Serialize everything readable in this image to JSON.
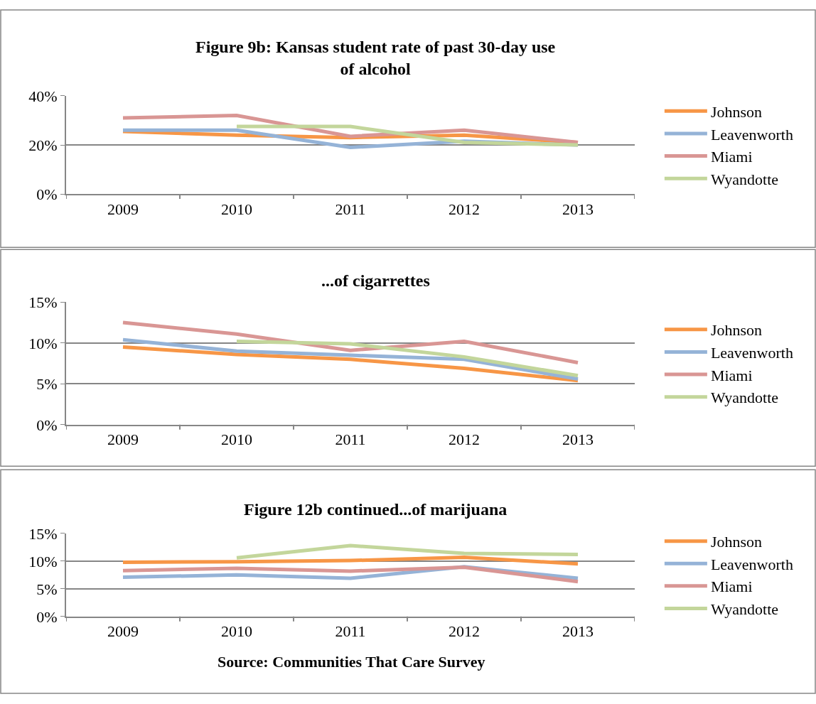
{
  "chart_data": [
    {
      "type": "line",
      "title": "Figure 9b: Kansas student rate of past 30-day use of alcohol",
      "categories": [
        "2009",
        "2010",
        "2011",
        "2012",
        "2013"
      ],
      "series": [
        {
          "name": "Johnson",
          "color": "#f79646",
          "values": [
            25.5,
            24,
            23,
            24,
            21
          ]
        },
        {
          "name": "Leavenworth",
          "color": "#95b3d7",
          "values": [
            26,
            26,
            19,
            21.5,
            20
          ]
        },
        {
          "name": "Miami",
          "color": "#d99694",
          "values": [
            31,
            32,
            23.5,
            26,
            21
          ]
        },
        {
          "name": "Wyandotte",
          "color": "#c3d69b",
          "values": [
            null,
            27.5,
            27.5,
            21,
            20
          ]
        }
      ],
      "ylim": [
        0,
        40
      ],
      "yticks": [
        {
          "value": 0,
          "label": "0%"
        },
        {
          "value": 20,
          "label": "20%"
        },
        {
          "value": 40,
          "label": "40%"
        }
      ],
      "grid": "y",
      "legend": "right",
      "marker": "none"
    },
    {
      "type": "line",
      "title": "...of cigarrettes",
      "categories": [
        "2009",
        "2010",
        "2011",
        "2012",
        "2013"
      ],
      "series": [
        {
          "name": "Johnson",
          "color": "#f79646",
          "values": [
            9.5,
            8.6,
            8.0,
            6.9,
            5.4
          ]
        },
        {
          "name": "Leavenworth",
          "color": "#95b3d7",
          "values": [
            10.4,
            9.0,
            8.5,
            8.0,
            5.6
          ]
        },
        {
          "name": "Miami",
          "color": "#d99694",
          "values": [
            12.5,
            11.1,
            9.1,
            10.2,
            7.6
          ]
        },
        {
          "name": "Wyandotte",
          "color": "#c3d69b",
          "values": [
            null,
            10.2,
            9.9,
            8.3,
            6.0
          ]
        }
      ],
      "ylim": [
        0,
        15
      ],
      "yticks": [
        {
          "value": 0,
          "label": "0%"
        },
        {
          "value": 5,
          "label": "5%"
        },
        {
          "value": 10,
          "label": "10%"
        },
        {
          "value": 15,
          "label": "15%"
        }
      ],
      "grid": "y",
      "legend": "right",
      "marker": "none"
    },
    {
      "type": "line",
      "title": "Figure 12b continued...of marijuana",
      "categories": [
        "2009",
        "2010",
        "2011",
        "2012",
        "2013"
      ],
      "series": [
        {
          "name": "Johnson",
          "color": "#f79646",
          "values": [
            9.8,
            9.9,
            10.1,
            10.7,
            9.5
          ]
        },
        {
          "name": "Leavenworth",
          "color": "#95b3d7",
          "values": [
            7.1,
            7.5,
            6.9,
            9.0,
            6.9
          ]
        },
        {
          "name": "Miami",
          "color": "#d99694",
          "values": [
            8.3,
            8.7,
            8.2,
            8.9,
            6.3
          ]
        },
        {
          "name": "Wyandotte",
          "color": "#c3d69b",
          "values": [
            null,
            10.6,
            12.8,
            11.4,
            11.2
          ]
        }
      ],
      "ylim": [
        0,
        15
      ],
      "yticks": [
        {
          "value": 0,
          "label": "0%"
        },
        {
          "value": 5,
          "label": "5%"
        },
        {
          "value": 10,
          "label": "10%"
        },
        {
          "value": 15,
          "label": "15%"
        }
      ],
      "grid": "y",
      "legend": "right",
      "marker": "none",
      "annotations": [
        "Source: Communities That Care Survey"
      ]
    }
  ]
}
